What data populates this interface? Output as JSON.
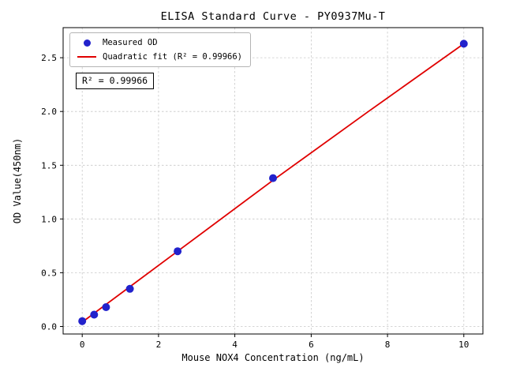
{
  "chart_data": {
    "type": "scatter",
    "title": "ELISA Standard Curve - PY0937Mu-T",
    "xlabel": "Mouse NOX4 Concentration (ng/mL)",
    "ylabel": "OD Value(450nm)",
    "xlim": [
      -0.5,
      10.5
    ],
    "ylim": [
      -0.07,
      2.78
    ],
    "xticks": [
      0,
      2,
      4,
      6,
      8,
      10
    ],
    "xtick_labels": [
      "0",
      "2",
      "4",
      "6",
      "8",
      "10"
    ],
    "yticks": [
      0.0,
      0.5,
      1.0,
      1.5,
      2.0,
      2.5
    ],
    "ytick_labels": [
      "0.0",
      "0.5",
      "1.0",
      "1.5",
      "2.0",
      "2.5"
    ],
    "grid": true,
    "grid_color": "#c8c8c8",
    "legend_position": "upper left",
    "annotation": "R² = 0.99966",
    "series": [
      {
        "name": "Measured OD",
        "type": "scatter",
        "color": "#2222cc",
        "x": [
          0,
          0.313,
          0.625,
          1.25,
          2.5,
          5,
          10
        ],
        "y": [
          0.05,
          0.11,
          0.18,
          0.35,
          0.7,
          1.38,
          2.63
        ]
      },
      {
        "name": "Quadratic fit (R² = 0.99966)",
        "type": "line",
        "color": "#e00000",
        "x": [
          0,
          1.25,
          2.5,
          5,
          7.5,
          10
        ],
        "y": [
          0.04,
          0.37,
          0.7,
          1.36,
          2.0,
          2.63
        ]
      }
    ]
  }
}
